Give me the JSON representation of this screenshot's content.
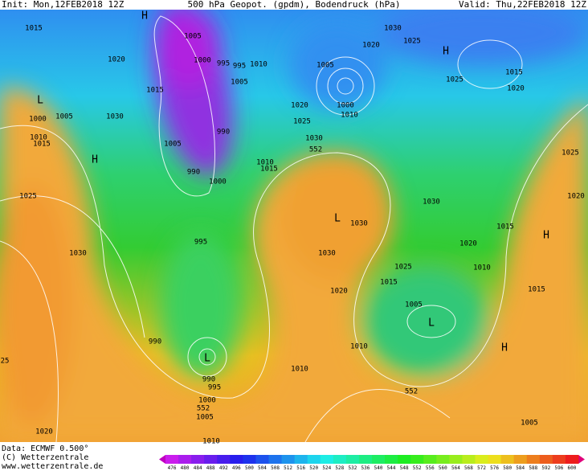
{
  "header": {
    "init": "Init: Mon,12FEB2018 12Z",
    "title": "500 hPa Geopot. (gpdm), Bodendruck (hPa)",
    "valid": "Valid: Thu,22FEB2018 12Z"
  },
  "map_labels": [
    "H",
    "1015",
    "1005",
    "1020",
    "1000",
    "995",
    "995",
    "1010",
    "1005",
    "1020",
    "1030",
    "1025",
    "H",
    "1025",
    "1015",
    "1020",
    "L",
    "1000",
    "1005",
    "1030",
    "1015",
    "1005",
    "1000",
    "1010",
    "1020",
    "1025",
    "1030",
    "552",
    "1015",
    "1010",
    "1000",
    "990",
    "990",
    "1005",
    "1010",
    "1015",
    "H",
    "1025",
    "1030",
    "995",
    "L",
    "1030",
    "1030",
    "1030",
    "1020",
    "1015",
    "H",
    "1025",
    "1020",
    "1025",
    "1010",
    "1015",
    "1020",
    "1005",
    "L",
    "1015",
    "H",
    "990",
    "L",
    "990",
    "995",
    "1000",
    "552",
    "1005",
    "1010",
    "1010",
    "552",
    "1005",
    "1020",
    "1010",
    "25"
  ],
  "footer": {
    "data": "Data: ECMWF   0.500°",
    "copyright": "(C) Wetterzentrale",
    "url": "www.wetterzentrale.de"
  },
  "colorbar": {
    "ticks": [
      476,
      480,
      484,
      488,
      492,
      496,
      500,
      504,
      508,
      512,
      516,
      520,
      524,
      528,
      532,
      536,
      540,
      544,
      548,
      552,
      556,
      560,
      564,
      568,
      572,
      576,
      580,
      584,
      588,
      592,
      596,
      600
    ]
  }
}
